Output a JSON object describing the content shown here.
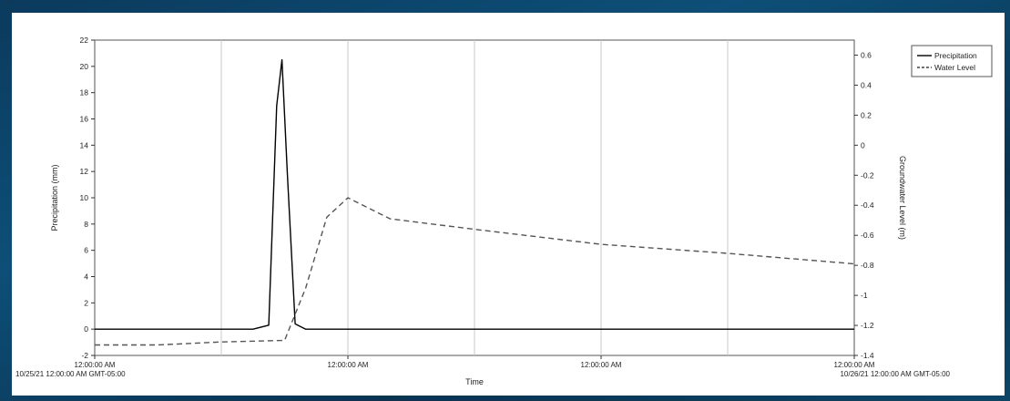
{
  "chart_data": {
    "type": "line",
    "title": "",
    "xlabel": "Time",
    "ylabel_left": "Precipitation (mm)",
    "ylabel_right": "Groundwater Level (m)",
    "y_left_ticks": [
      -2,
      0,
      2,
      4,
      6,
      8,
      10,
      12,
      14,
      16,
      18,
      20,
      22
    ],
    "y_left_ylim": [
      -2,
      22
    ],
    "y_right_ticks": [
      "0.6",
      "0.4",
      "0.2",
      "0",
      "-0.2",
      "-0.4",
      "-0.6",
      "-0.8",
      "-1",
      "-1.2",
      "-1.4"
    ],
    "y_right_ylim": [
      -1.4,
      0.7
    ],
    "x_range_hours": [
      0,
      144
    ],
    "x_ticks": [
      {
        "x": 0,
        "lines": [
          "12:00:00 AM",
          "10/25/21 12:00:00 AM GMT-05:00"
        ]
      },
      {
        "x": 48,
        "lines": [
          "12:00:00 AM"
        ]
      },
      {
        "x": 96,
        "lines": [
          "12:00:00 AM"
        ]
      },
      {
        "x": 144,
        "lines": [
          "12:00:00 AM",
          "10/26/21 12:00:00 AM GMT-05:00"
        ]
      }
    ],
    "grid_x": [
      24,
      48,
      72,
      96,
      120
    ],
    "legend_position": "top-right",
    "series": [
      {
        "name": "Precipitation",
        "axis": "left",
        "style": "solid",
        "x": [
          0,
          30,
          33,
          34.5,
          35.5,
          36.5,
          38,
          40,
          144
        ],
        "y": [
          0,
          0,
          0.3,
          17,
          20.5,
          12,
          0.4,
          0,
          0
        ]
      },
      {
        "name": "Water Level",
        "axis": "right",
        "style": "dashed",
        "x": [
          0,
          12,
          24,
          36,
          40,
          44,
          48,
          56,
          72,
          96,
          120,
          144
        ],
        "y": [
          -1.33,
          -1.33,
          -1.31,
          -1.3,
          -0.95,
          -0.48,
          -0.35,
          -0.49,
          -0.56,
          -0.66,
          -0.72,
          -0.79
        ]
      }
    ]
  }
}
